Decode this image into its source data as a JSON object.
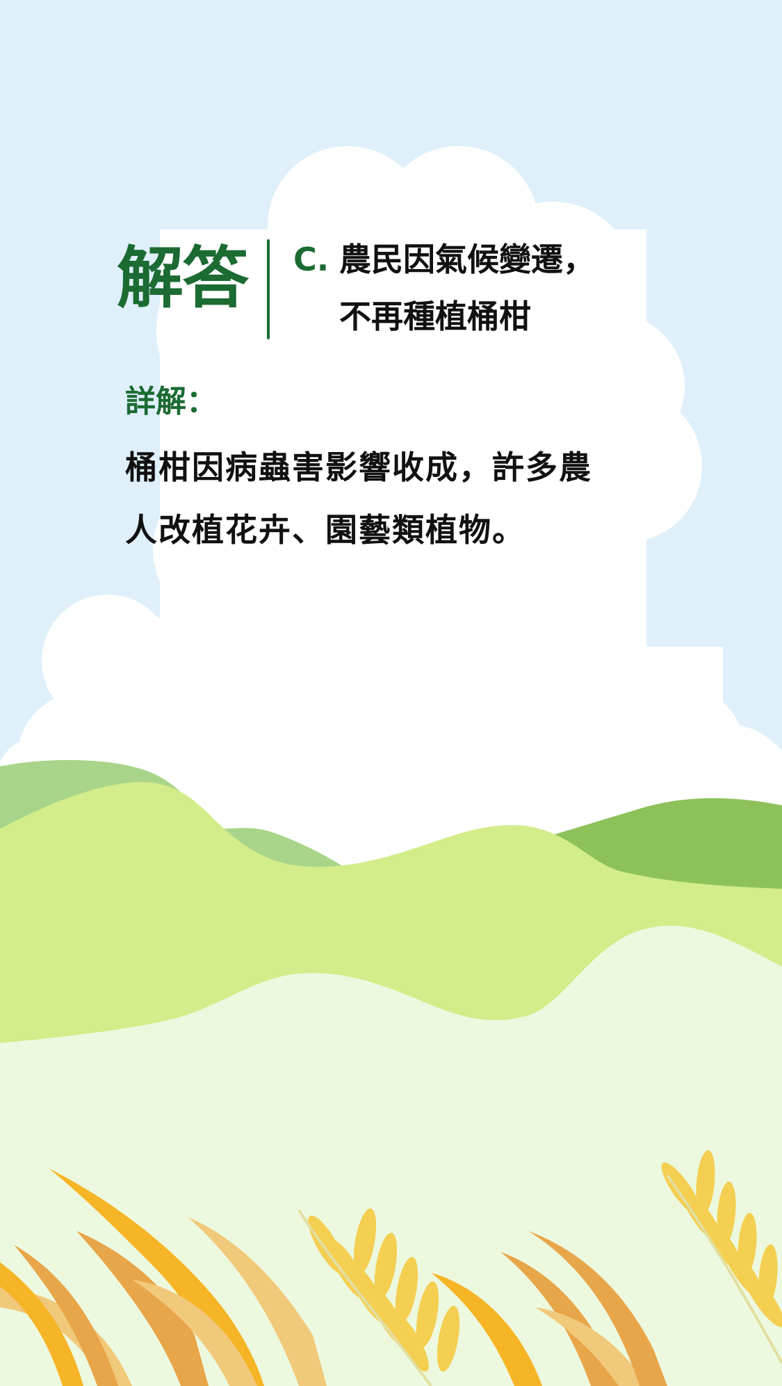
{
  "card": {
    "answer_label": "解答",
    "answer_letter": "C.",
    "answer_lines": [
      "農民因氣候變遷，",
      "不再種植桶柑"
    ],
    "explain_label": "詳解：",
    "explain_lines": [
      "桶柑因病蟲害影響收成，許多農",
      "人改植花卉、園藝類植物。"
    ]
  },
  "colors": {
    "sky": "#DFF0FA",
    "cloud": "#FFFFFF",
    "hill_back_left": "#A9D58A",
    "hill_back_right": "#8DC25A",
    "hill_mid": "#D2ED8A",
    "hill_front": "#EDF9DE",
    "accent_green": "#1B6B32",
    "wheat_orange": "#F6B526",
    "wheat_dark": "#E8A64A",
    "wheat_light": "#F1C97A",
    "wheat_yellow": "#F4CF52"
  },
  "icons": [
    "cloud",
    "hills",
    "wheat-stalks"
  ]
}
